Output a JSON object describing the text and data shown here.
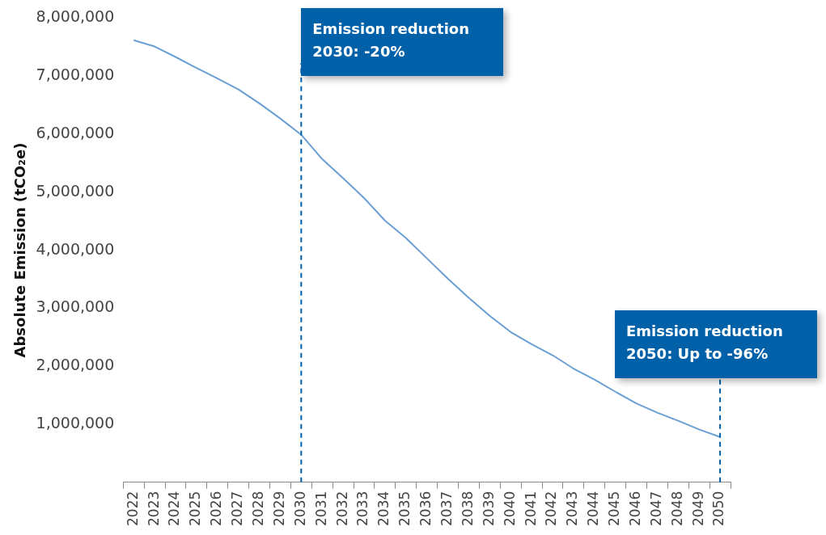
{
  "chart_data": {
    "type": "line",
    "ylabel": "Absolute Emission (tCO₂e)",
    "categories": [
      "2022",
      "2023",
      "2024",
      "2025",
      "2026",
      "2027",
      "2028",
      "2029",
      "2030",
      "2031",
      "2032",
      "2033",
      "2034",
      "2035",
      "2036",
      "2037",
      "2038",
      "2039",
      "2040",
      "2041",
      "2042",
      "2043",
      "2044",
      "2045",
      "2046",
      "2047",
      "2048",
      "2049",
      "2050"
    ],
    "series": [
      {
        "color": "#6a9fd4",
        "values": [
          7620000,
          7510000,
          7330000,
          7140000,
          6960000,
          6770000,
          6530000,
          6270000,
          5990000,
          5570000,
          5240000,
          4900000,
          4510000,
          4210000,
          3860000,
          3510000,
          3180000,
          2870000,
          2590000,
          2380000,
          2190000,
          1960000,
          1770000,
          1560000,
          1360000,
          1200000,
          1060000,
          910000,
          780000
        ]
      }
    ],
    "ylim": [
      0,
      8000000
    ],
    "yticks": [
      {
        "value": 1000000,
        "label": "1,000,000"
      },
      {
        "value": 2000000,
        "label": "2,000,000"
      },
      {
        "value": 3000000,
        "label": "3,000,000"
      },
      {
        "value": 4000000,
        "label": "4,000,000"
      },
      {
        "value": 5000000,
        "label": "5,000,000"
      },
      {
        "value": 6000000,
        "label": "6,000,000"
      },
      {
        "value": 7000000,
        "label": "7,000,000"
      },
      {
        "value": 8000000,
        "label": "8,000,000"
      }
    ],
    "grid": false,
    "legend": false,
    "marker": "none",
    "line_style": "solid",
    "ref_lines": [
      {
        "axis": "x",
        "value": "2030",
        "label": "Emission reduction 2030: -20%",
        "color": "#0060a8",
        "line_style": "dashed"
      },
      {
        "axis": "x",
        "value": "2050",
        "label": "Emission reduction 2050: Up to -96%",
        "color": "#0060a8",
        "line_style": "dashed"
      }
    ]
  }
}
